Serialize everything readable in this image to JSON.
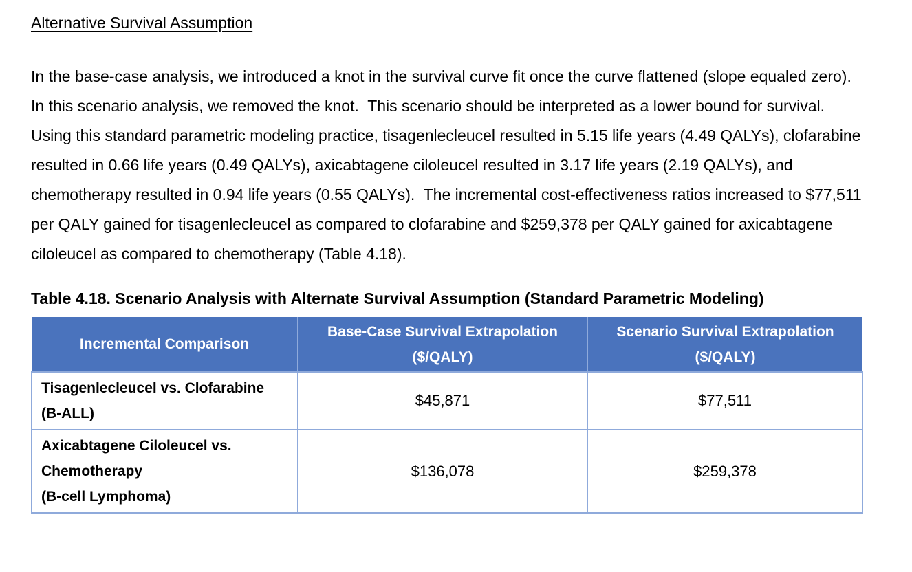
{
  "doc": {
    "heading": "Alternative Survival Assumption",
    "paragraph": "In the base-case analysis, we introduced a knot in the survival curve fit once the curve flattened (slope equaled zero).  In this scenario analysis, we removed the knot.  This scenario should be interpreted as a lower bound for survival.  Using this standard parametric modeling practice, tisagenlecleucel resulted in 5.15 life years (4.49 QALYs), clofarabine resulted in 0.66 life years (0.49 QALYs), axicabtagene ciloleucel resulted in 3.17 life years (2.19 QALYs), and chemotherapy resulted in 0.94 life years (0.55 QALYs).  The incremental cost-effectiveness ratios increased to $77,511 per QALY gained for tisagenlecleucel as compared to clofarabine and $259,378 per QALY gained for axicabtagene ciloleucel as compared to chemotherapy (Table 4.18).",
    "table_title": "Table 4.18. Scenario Analysis with Alternate Survival Assumption (Standard Parametric Modeling)",
    "table": {
      "columns": [
        {
          "line1": "Incremental Comparison",
          "line2": ""
        },
        {
          "line1": "Base-Case Survival Extrapolation",
          "line2": "($/QALY)"
        },
        {
          "line1": "Scenario Survival Extrapolation",
          "line2": "($/QALY)"
        }
      ],
      "rows": [
        {
          "label_lines": [
            "Tisagenlecleucel vs. Clofarabine",
            "(B-ALL)"
          ],
          "values": [
            "$45,871",
            "$77,511"
          ]
        },
        {
          "label_lines": [
            "Axicabtagene Ciloleucel vs.",
            "Chemotherapy",
            "(B-cell Lymphoma)"
          ],
          "values": [
            "$136,078",
            "$259,378"
          ]
        }
      ]
    }
  },
  "colors": {
    "table_header_bg": "#4a73bd",
    "table_header_text": "#ffffff",
    "table_border": "#8faadb",
    "body_text": "#000000",
    "page_bg": "#ffffff"
  }
}
